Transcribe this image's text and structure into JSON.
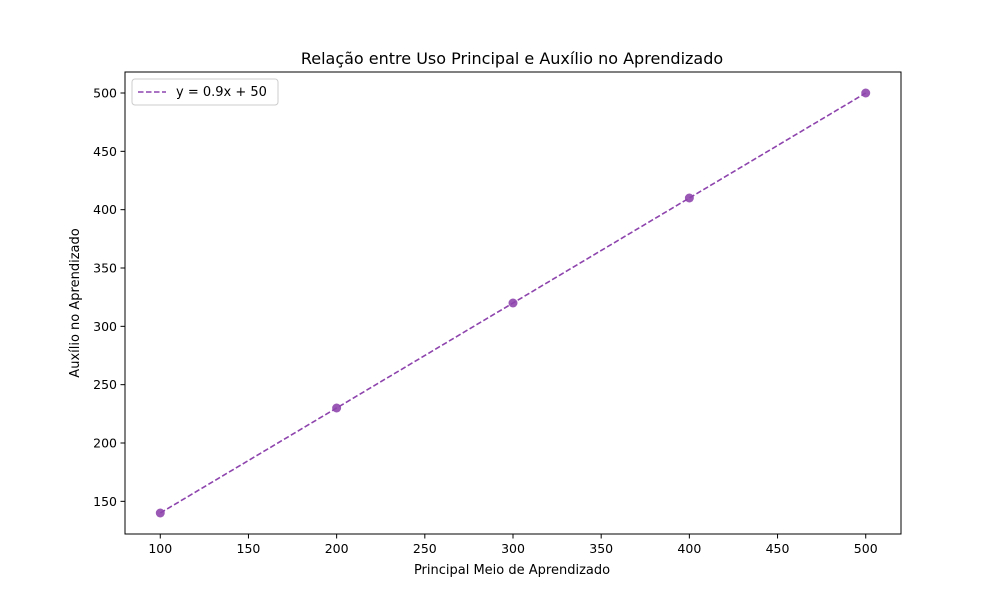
{
  "chart_data": {
    "type": "scatter",
    "title": "Relação entre Uso Principal e Auxílio no Aprendizado",
    "xlabel": "Principal Meio de Aprendizado",
    "ylabel": "Auxílio no Aprendizado",
    "xlim": [
      80,
      520
    ],
    "ylim": [
      122,
      518
    ],
    "xticks": [
      100,
      150,
      200,
      250,
      300,
      350,
      400,
      450,
      500
    ],
    "yticks": [
      150,
      200,
      250,
      300,
      350,
      400,
      450,
      500
    ],
    "grid": false,
    "legend_position": "top-left",
    "series": [
      {
        "kind": "points",
        "x": [
          100,
          200,
          300,
          400,
          500
        ],
        "y": [
          140,
          230,
          320,
          410,
          500
        ],
        "color": "#9b59b6",
        "marker": "circle"
      },
      {
        "kind": "fit-line",
        "name": "y = 0.9x + 50",
        "slope": 0.9,
        "intercept": 50,
        "x_range": [
          100,
          500
        ],
        "color": "#8e44ad",
        "linestyle": "dashed"
      }
    ]
  }
}
